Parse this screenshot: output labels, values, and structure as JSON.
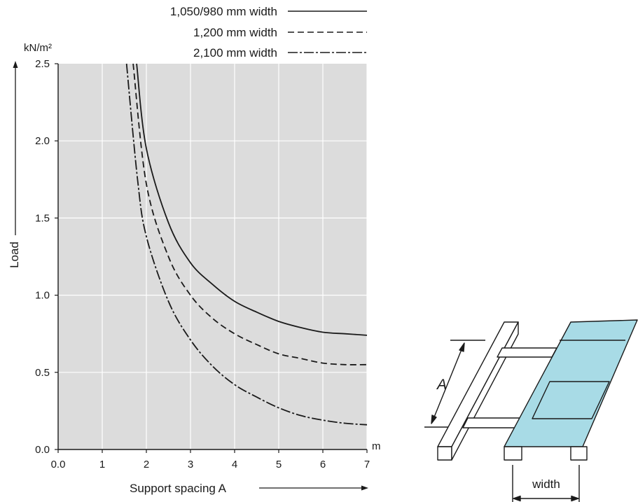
{
  "chart_data": {
    "type": "line",
    "xlabel": "Support spacing A",
    "x_unit": "m",
    "ylabel": "Load",
    "y_unit": "kN/m²",
    "xlim": [
      0,
      7
    ],
    "ylim": [
      0,
      2.5
    ],
    "xticks": [
      "0.0",
      "1",
      "2",
      "3",
      "4",
      "5",
      "6",
      "7"
    ],
    "yticks": [
      "0.0",
      "0.5",
      "1.0",
      "1.5",
      "2.0",
      "2.5"
    ],
    "grid": true,
    "legend_position": "top",
    "series": [
      {
        "name": "1,050/980 mm width",
        "style": "solid",
        "x": [
          1.78,
          2.0,
          2.5,
          3.0,
          3.5,
          4.0,
          4.5,
          5.0,
          5.5,
          6.0,
          6.5,
          7.0
        ],
        "y": [
          2.5,
          1.95,
          1.47,
          1.21,
          1.07,
          0.96,
          0.89,
          0.83,
          0.79,
          0.76,
          0.75,
          0.74
        ]
      },
      {
        "name": "1,200 mm width",
        "style": "dashed",
        "x": [
          1.7,
          2.0,
          2.5,
          3.0,
          3.5,
          4.0,
          4.5,
          5.0,
          5.5,
          6.0,
          6.5,
          7.0
        ],
        "y": [
          2.5,
          1.72,
          1.25,
          1.0,
          0.85,
          0.75,
          0.68,
          0.62,
          0.59,
          0.56,
          0.55,
          0.55
        ]
      },
      {
        "name": "2,100 mm width",
        "style": "dashdot",
        "x": [
          1.55,
          1.8,
          2.0,
          2.5,
          3.0,
          3.5,
          4.0,
          4.5,
          5.0,
          5.5,
          6.0,
          6.5,
          7.0
        ],
        "y": [
          2.5,
          1.75,
          1.38,
          0.96,
          0.71,
          0.54,
          0.42,
          0.34,
          0.27,
          0.22,
          0.19,
          0.17,
          0.16
        ]
      }
    ]
  },
  "diagram": {
    "spacing_label": "A",
    "width_label": "width",
    "colors": {
      "plot_bg": "#dcdcdc",
      "grid": "#ffffff",
      "panel": "#a8dbe6",
      "line": "#1a1a1a"
    }
  }
}
